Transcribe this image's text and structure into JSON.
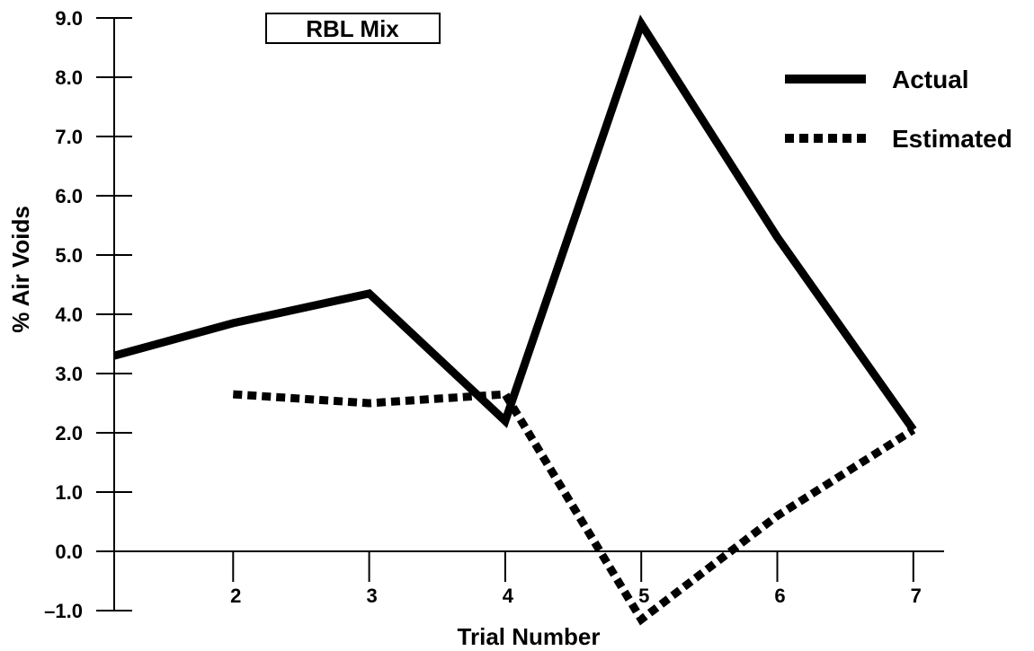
{
  "chart_data": {
    "type": "line",
    "title": "RBL Mix",
    "xlabel": "Trial Number",
    "ylabel": "% Air Voids",
    "x_ticks": [
      2,
      3,
      4,
      5,
      6,
      7
    ],
    "x_tick_labels": [
      "2",
      "3",
      "4",
      "5",
      "6",
      "7"
    ],
    "y_ticks": [
      -1,
      0,
      1,
      2,
      3,
      4,
      5,
      6,
      7,
      8,
      9
    ],
    "y_tick_labels": [
      "–1.0",
      "0.0",
      "1.0",
      "2.0",
      "3.0",
      "4.0",
      "5.0",
      "6.0",
      "7.0",
      "8.0",
      "9.0"
    ],
    "xlim": [
      1.1,
      7.25
    ],
    "ylim": [
      -1,
      9
    ],
    "grid": false,
    "legend_position": "top-right",
    "series": [
      {
        "name": "Actual",
        "style": "solid",
        "color": "#000000",
        "x": [
          1,
          2,
          3,
          4,
          5,
          6,
          7
        ],
        "y": [
          3.3,
          3.85,
          4.35,
          2.2,
          8.9,
          5.3,
          2.05
        ]
      },
      {
        "name": "Estimated",
        "style": "dotted",
        "color": "#000000",
        "x": [
          2,
          3,
          4,
          5,
          6,
          7
        ],
        "y": [
          2.65,
          2.5,
          2.65,
          -1.15,
          0.6,
          2.05
        ]
      }
    ]
  }
}
